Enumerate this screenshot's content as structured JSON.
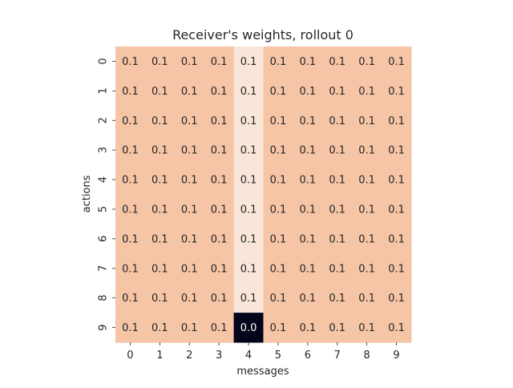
{
  "chart_data": {
    "type": "heatmap",
    "title": "Receiver's weights, rollout 0",
    "xlabel": "messages",
    "ylabel": "actions",
    "x_ticks": [
      "0",
      "1",
      "2",
      "3",
      "4",
      "5",
      "6",
      "7",
      "8",
      "9"
    ],
    "y_ticks": [
      "0",
      "1",
      "2",
      "3",
      "4",
      "5",
      "6",
      "7",
      "8",
      "9"
    ],
    "values": [
      [
        0.1,
        0.1,
        0.1,
        0.1,
        0.1,
        0.1,
        0.1,
        0.1,
        0.1,
        0.1
      ],
      [
        0.1,
        0.1,
        0.1,
        0.1,
        0.1,
        0.1,
        0.1,
        0.1,
        0.1,
        0.1
      ],
      [
        0.1,
        0.1,
        0.1,
        0.1,
        0.1,
        0.1,
        0.1,
        0.1,
        0.1,
        0.1
      ],
      [
        0.1,
        0.1,
        0.1,
        0.1,
        0.1,
        0.1,
        0.1,
        0.1,
        0.1,
        0.1
      ],
      [
        0.1,
        0.1,
        0.1,
        0.1,
        0.1,
        0.1,
        0.1,
        0.1,
        0.1,
        0.1
      ],
      [
        0.1,
        0.1,
        0.1,
        0.1,
        0.1,
        0.1,
        0.1,
        0.1,
        0.1,
        0.1
      ],
      [
        0.1,
        0.1,
        0.1,
        0.1,
        0.1,
        0.1,
        0.1,
        0.1,
        0.1,
        0.1
      ],
      [
        0.1,
        0.1,
        0.1,
        0.1,
        0.1,
        0.1,
        0.1,
        0.1,
        0.1,
        0.1
      ],
      [
        0.1,
        0.1,
        0.1,
        0.1,
        0.1,
        0.1,
        0.1,
        0.1,
        0.1,
        0.1
      ],
      [
        0.1,
        0.1,
        0.1,
        0.1,
        0.0,
        0.1,
        0.1,
        0.1,
        0.1,
        0.1
      ]
    ],
    "labels": [
      [
        "0.1",
        "0.1",
        "0.1",
        "0.1",
        "0.1",
        "0.1",
        "0.1",
        "0.1",
        "0.1",
        "0.1"
      ],
      [
        "0.1",
        "0.1",
        "0.1",
        "0.1",
        "0.1",
        "0.1",
        "0.1",
        "0.1",
        "0.1",
        "0.1"
      ],
      [
        "0.1",
        "0.1",
        "0.1",
        "0.1",
        "0.1",
        "0.1",
        "0.1",
        "0.1",
        "0.1",
        "0.1"
      ],
      [
        "0.1",
        "0.1",
        "0.1",
        "0.1",
        "0.1",
        "0.1",
        "0.1",
        "0.1",
        "0.1",
        "0.1"
      ],
      [
        "0.1",
        "0.1",
        "0.1",
        "0.1",
        "0.1",
        "0.1",
        "0.1",
        "0.1",
        "0.1",
        "0.1"
      ],
      [
        "0.1",
        "0.1",
        "0.1",
        "0.1",
        "0.1",
        "0.1",
        "0.1",
        "0.1",
        "0.1",
        "0.1"
      ],
      [
        "0.1",
        "0.1",
        "0.1",
        "0.1",
        "0.1",
        "0.1",
        "0.1",
        "0.1",
        "0.1",
        "0.1"
      ],
      [
        "0.1",
        "0.1",
        "0.1",
        "0.1",
        "0.1",
        "0.1",
        "0.1",
        "0.1",
        "0.1",
        "0.1"
      ],
      [
        "0.1",
        "0.1",
        "0.1",
        "0.1",
        "0.1",
        "0.1",
        "0.1",
        "0.1",
        "0.1",
        "0.1"
      ],
      [
        "0.1",
        "0.1",
        "0.1",
        "0.1",
        "0.0",
        "0.1",
        "0.1",
        "0.1",
        "0.1",
        "0.1"
      ]
    ],
    "colors": {
      "default_cell": "#f6c5a6",
      "light_cell": "#fae6d9",
      "dark_cell": "#03051a",
      "text_on_light": "#262626",
      "text_on_dark": "#ffffff"
    },
    "highlight_column": 4,
    "grid": false,
    "colorbar": false
  }
}
